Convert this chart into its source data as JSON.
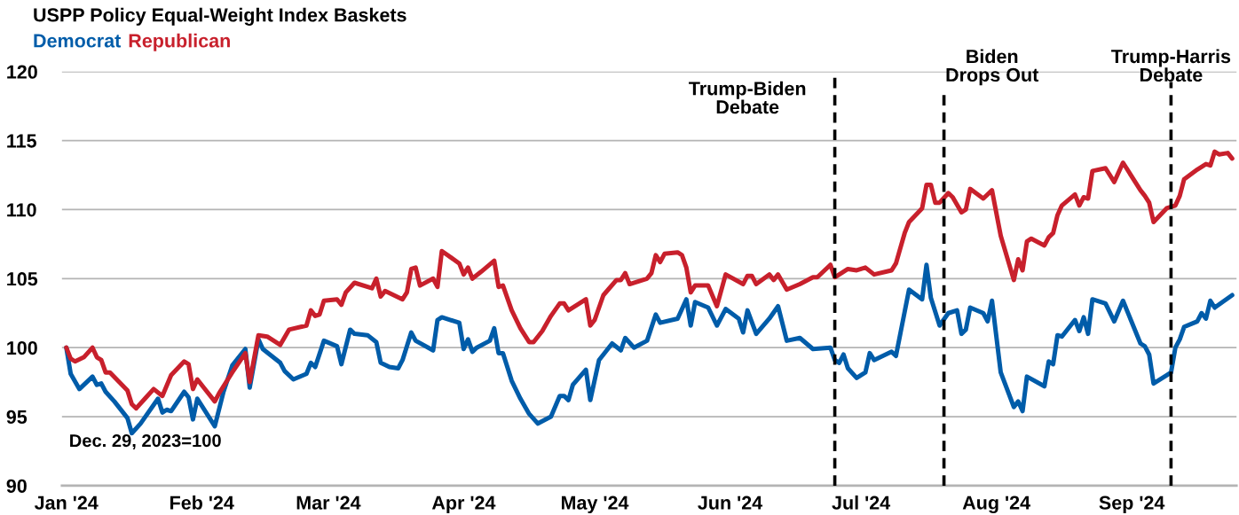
{
  "chart_data": {
    "type": "line",
    "title": "USPP Policy Equal-Weight Index Baskets",
    "annotations": [
      "Dec. 29, 2023=100"
    ],
    "legend": "top left",
    "grid": "y",
    "marker": "none",
    "line_style": "solid",
    "xlim": [
      "2023-12-31",
      "2024-09-25"
    ],
    "xticks": [
      {
        "value": "2024-01-01",
        "label": "Jan '24"
      },
      {
        "value": "2024-02-01",
        "label": "Feb '24"
      },
      {
        "value": "2024-03-01",
        "label": "Mar '24"
      },
      {
        "value": "2024-04-01",
        "label": "Apr '24"
      },
      {
        "value": "2024-05-01",
        "label": "May '24"
      },
      {
        "value": "2024-06-01",
        "label": "Jun '24"
      },
      {
        "value": "2024-07-01",
        "label": "Jul '24"
      },
      {
        "value": "2024-08-01",
        "label": "Aug '24"
      },
      {
        "value": "2024-09-01",
        "label": "Sep '24"
      }
    ],
    "ylim": [
      90,
      120
    ],
    "yticks": [
      90,
      95,
      100,
      105,
      110,
      115,
      120
    ],
    "ref_lines": [
      {
        "axis": "x",
        "value": "2024-06-25",
        "label": "Trump-Biden\nDebate",
        "color": "#000000",
        "line_style": "dashed"
      },
      {
        "axis": "x",
        "value": "2024-07-20",
        "label": "Biden\nDrops Out",
        "color": "#000000",
        "line_style": "dashed"
      },
      {
        "axis": "x",
        "value": "2024-09-10",
        "label": "Trump-Harris\nDebate",
        "color": "#000000",
        "line_style": "dashed"
      }
    ],
    "series": [
      {
        "name": "Democrat",
        "color": "#005ca9",
        "x": [
          "2024-01-01",
          "2024-01-02",
          "2024-01-04",
          "2024-01-07",
          "2024-01-08",
          "2024-01-09",
          "2024-01-10",
          "2024-01-12",
          "2024-01-15",
          "2024-01-16",
          "2024-01-18",
          "2024-01-22",
          "2024-01-23",
          "2024-01-24",
          "2024-01-25",
          "2024-01-28",
          "2024-01-29",
          "2024-01-30",
          "2024-01-31",
          "2024-02-04",
          "2024-02-06",
          "2024-02-08",
          "2024-02-11",
          "2024-02-12",
          "2024-02-14",
          "2024-02-15",
          "2024-02-19",
          "2024-02-20",
          "2024-02-22",
          "2024-02-25",
          "2024-02-26",
          "2024-02-27",
          "2024-02-29",
          "2024-03-03",
          "2024-03-04",
          "2024-03-06",
          "2024-03-07",
          "2024-03-10",
          "2024-03-12",
          "2024-03-13",
          "2024-03-15",
          "2024-03-17",
          "2024-03-18",
          "2024-03-20",
          "2024-03-21",
          "2024-03-25",
          "2024-03-26",
          "2024-03-27",
          "2024-03-31",
          "2024-04-01",
          "2024-04-02",
          "2024-04-03",
          "2024-04-04",
          "2024-04-07",
          "2024-04-08",
          "2024-04-09",
          "2024-04-10",
          "2024-04-12",
          "2024-04-14",
          "2024-04-16",
          "2024-04-18",
          "2024-04-21",
          "2024-04-23",
          "2024-04-24",
          "2024-04-25",
          "2024-04-26",
          "2024-04-29",
          "2024-04-30",
          "2024-05-02",
          "2024-05-05",
          "2024-05-07",
          "2024-05-08",
          "2024-05-10",
          "2024-05-13",
          "2024-05-15",
          "2024-05-16",
          "2024-05-20",
          "2024-05-22",
          "2024-05-23",
          "2024-05-24",
          "2024-05-27",
          "2024-05-29",
          "2024-05-31",
          "2024-06-03",
          "2024-06-04",
          "2024-06-05",
          "2024-06-07",
          "2024-06-10",
          "2024-06-12",
          "2024-06-14",
          "2024-06-17",
          "2024-06-20",
          "2024-06-24",
          "2024-06-25",
          "2024-06-26",
          "2024-06-27",
          "2024-06-28",
          "2024-06-30",
          "2024-07-02",
          "2024-07-03",
          "2024-07-04",
          "2024-07-08",
          "2024-07-09",
          "2024-07-12",
          "2024-07-15",
          "2024-07-16",
          "2024-07-17",
          "2024-07-19",
          "2024-07-21",
          "2024-07-23",
          "2024-07-24",
          "2024-07-25",
          "2024-07-26",
          "2024-07-29",
          "2024-07-30",
          "2024-07-31",
          "2024-08-02",
          "2024-08-05",
          "2024-08-06",
          "2024-08-07",
          "2024-08-08",
          "2024-08-12",
          "2024-08-13",
          "2024-08-14",
          "2024-08-15",
          "2024-08-16",
          "2024-08-19",
          "2024-08-20",
          "2024-08-21",
          "2024-08-22",
          "2024-08-23",
          "2024-08-26",
          "2024-08-28",
          "2024-08-30",
          "2024-09-03",
          "2024-09-04",
          "2024-09-05",
          "2024-09-06",
          "2024-09-09",
          "2024-09-10",
          "2024-09-11",
          "2024-09-12",
          "2024-09-13",
          "2024-09-16",
          "2024-09-17",
          "2024-09-18",
          "2024-09-19",
          "2024-09-20",
          "2024-09-24"
        ],
        "values": [
          100,
          98.1,
          97.0,
          97.9,
          97.3,
          97.4,
          96.8,
          96.1,
          94.9,
          93.8,
          94.5,
          96.3,
          95.3,
          95.5,
          95.4,
          96.8,
          96.4,
          94.8,
          96.3,
          94.3,
          96.8,
          98.7,
          99.9,
          97.1,
          100.6,
          99.9,
          98.9,
          98.3,
          97.7,
          98.1,
          98.9,
          98.6,
          100.5,
          100.1,
          98.8,
          101.3,
          101.0,
          100.9,
          100.4,
          98.9,
          98.6,
          98.5,
          99.1,
          101.1,
          100.5,
          99.8,
          102.0,
          102.2,
          101.8,
          99.9,
          100.6,
          99.7,
          100.0,
          100.5,
          101.4,
          99.6,
          99.6,
          97.6,
          96.3,
          95.2,
          94.5,
          95.0,
          96.5,
          96.5,
          96.2,
          97.3,
          98.4,
          96.2,
          99.1,
          100.3,
          99.8,
          100.7,
          100.0,
          100.5,
          102.4,
          101.8,
          102.1,
          103.5,
          101.6,
          103.3,
          102.9,
          101.6,
          102.8,
          102.1,
          101.1,
          102.7,
          101.0,
          102.1,
          103.0,
          100.5,
          100.7,
          99.9,
          100.0,
          99.1,
          98.9,
          99.5,
          98.5,
          97.8,
          98.2,
          99.6,
          99.1,
          99.7,
          99.4,
          104.2,
          103.5,
          106.0,
          103.6,
          101.6,
          102.5,
          102.7,
          101.0,
          101.3,
          102.9,
          102.5,
          101.9,
          103.4,
          98.2,
          95.7,
          96.1,
          95.4,
          97.9,
          97.2,
          99.0,
          98.8,
          100.9,
          100.8,
          102.0,
          101.2,
          102.2,
          101.0,
          103.5,
          103.2,
          101.9,
          103.4,
          100.3,
          100.1,
          99.5,
          97.4,
          98.0,
          98.2,
          100.0,
          100.6,
          101.5,
          101.9,
          102.5,
          102.1,
          103.4,
          102.9,
          103.8
        ]
      },
      {
        "name": "Republican",
        "color": "#c8202c",
        "x": [
          "2024-01-01",
          "2024-01-02",
          "2024-01-03",
          "2024-01-05",
          "2024-01-07",
          "2024-01-08",
          "2024-01-09",
          "2024-01-10",
          "2024-01-11",
          "2024-01-15",
          "2024-01-16",
          "2024-01-17",
          "2024-01-19",
          "2024-01-21",
          "2024-01-23",
          "2024-01-25",
          "2024-01-28",
          "2024-01-29",
          "2024-01-30",
          "2024-01-31",
          "2024-02-02",
          "2024-02-04",
          "2024-02-05",
          "2024-02-08",
          "2024-02-11",
          "2024-02-12",
          "2024-02-14",
          "2024-02-16",
          "2024-02-19",
          "2024-02-21",
          "2024-02-25",
          "2024-02-26",
          "2024-02-27",
          "2024-02-28",
          "2024-02-29",
          "2024-03-03",
          "2024-03-04",
          "2024-03-05",
          "2024-03-07",
          "2024-03-11",
          "2024-03-12",
          "2024-03-13",
          "2024-03-14",
          "2024-03-18",
          "2024-03-19",
          "2024-03-20",
          "2024-03-21",
          "2024-03-22",
          "2024-03-25",
          "2024-03-26",
          "2024-03-27",
          "2024-03-31",
          "2024-04-01",
          "2024-04-02",
          "2024-04-03",
          "2024-04-05",
          "2024-04-08",
          "2024-04-09",
          "2024-04-10",
          "2024-04-12",
          "2024-04-14",
          "2024-04-16",
          "2024-04-17",
          "2024-04-19",
          "2024-04-21",
          "2024-04-23",
          "2024-04-24",
          "2024-04-25",
          "2024-04-29",
          "2024-04-30",
          "2024-05-01",
          "2024-05-03",
          "2024-05-06",
          "2024-05-07",
          "2024-05-08",
          "2024-05-09",
          "2024-05-13",
          "2024-05-14",
          "2024-05-15",
          "2024-05-16",
          "2024-05-17",
          "2024-05-20",
          "2024-05-21",
          "2024-05-22",
          "2024-05-23",
          "2024-05-24",
          "2024-05-27",
          "2024-05-29",
          "2024-05-31",
          "2024-06-04",
          "2024-06-05",
          "2024-06-06",
          "2024-06-07",
          "2024-06-10",
          "2024-06-11",
          "2024-06-12",
          "2024-06-14",
          "2024-06-17",
          "2024-06-20",
          "2024-06-21",
          "2024-06-24",
          "2024-06-25",
          "2024-06-28",
          "2024-06-30",
          "2024-07-02",
          "2024-07-04",
          "2024-07-08",
          "2024-07-09",
          "2024-07-11",
          "2024-07-12",
          "2024-07-15",
          "2024-07-16",
          "2024-07-17",
          "2024-07-18",
          "2024-07-19",
          "2024-07-21",
          "2024-07-22",
          "2024-07-24",
          "2024-07-25",
          "2024-07-26",
          "2024-07-29",
          "2024-07-31",
          "2024-08-02",
          "2024-08-05",
          "2024-08-06",
          "2024-08-07",
          "2024-08-08",
          "2024-08-09",
          "2024-08-12",
          "2024-08-13",
          "2024-08-14",
          "2024-08-15",
          "2024-08-16",
          "2024-08-19",
          "2024-08-20",
          "2024-08-21",
          "2024-08-22",
          "2024-08-23",
          "2024-08-26",
          "2024-08-28",
          "2024-08-30",
          "2024-09-03",
          "2024-09-04",
          "2024-09-05",
          "2024-09-06",
          "2024-09-09",
          "2024-09-11",
          "2024-09-12",
          "2024-09-13",
          "2024-09-16",
          "2024-09-18",
          "2024-09-19",
          "2024-09-20",
          "2024-09-21",
          "2024-09-23",
          "2024-09-24"
        ],
        "values": [
          100,
          99.2,
          99.0,
          99.3,
          100.0,
          99.3,
          99.1,
          98.2,
          98.2,
          96.9,
          95.9,
          95.6,
          96.3,
          97.0,
          96.5,
          98.0,
          99.0,
          98.8,
          97.0,
          97.7,
          96.9,
          96.1,
          96.7,
          98.2,
          99.6,
          97.5,
          100.9,
          100.8,
          100.2,
          101.3,
          101.6,
          102.7,
          102.3,
          102.4,
          103.4,
          103.5,
          103.1,
          104.0,
          104.7,
          104.3,
          105.0,
          103.7,
          104.1,
          103.5,
          104.0,
          105.7,
          105.8,
          104.5,
          105.0,
          104.4,
          107.0,
          106.1,
          105.3,
          105.8,
          105.0,
          105.5,
          106.3,
          104.4,
          104.5,
          102.7,
          101.4,
          100.4,
          100.4,
          101.2,
          102.3,
          103.2,
          103.2,
          102.7,
          103.5,
          101.6,
          102.0,
          103.8,
          104.9,
          104.9,
          105.4,
          104.6,
          105.0,
          105.4,
          106.7,
          106.2,
          106.8,
          106.9,
          106.7,
          105.8,
          104.0,
          104.5,
          104.5,
          103.0,
          105.3,
          104.6,
          105.2,
          105.2,
          104.6,
          105.3,
          104.9,
          105.3,
          104.2,
          104.6,
          105.1,
          105.1,
          106.0,
          105.1,
          105.7,
          105.6,
          105.8,
          105.3,
          105.6,
          106.1,
          108.3,
          109.1,
          110.1,
          111.8,
          111.8,
          110.5,
          110.5,
          111.2,
          110.9,
          109.8,
          110.0,
          111.5,
          110.8,
          111.4,
          108.1,
          104.9,
          106.4,
          105.6,
          107.7,
          107.9,
          107.4,
          108.0,
          108.3,
          109.6,
          110.3,
          111.1,
          110.3,
          110.9,
          110.8,
          112.8,
          113.0,
          112.0,
          113.4,
          111.4,
          111.0,
          110.5,
          109.1,
          110.1,
          110.3,
          111.0,
          112.2,
          112.9,
          113.3,
          113.2,
          114.2,
          114.0,
          114.1,
          113.7
        ]
      }
    ]
  }
}
